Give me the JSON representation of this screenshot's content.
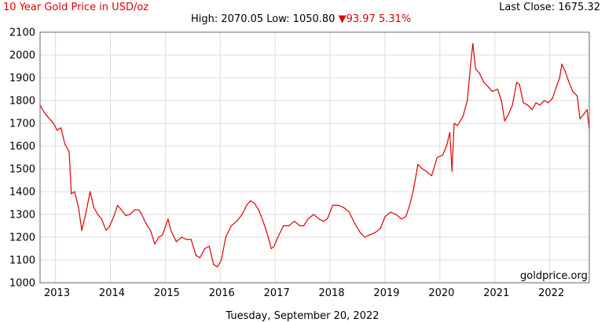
{
  "header": {
    "title": "10 Year Gold Price in USD/oz",
    "last_close_label": "Last Close: 1675.32",
    "high_low": "High: 2070.05 Low: 1050.80",
    "change_arrow": "▼",
    "change": "93.97 5.31%"
  },
  "watermark": "goldprice.org",
  "date_caption": "Tuesday, September 20, 2022",
  "colors": {
    "line": "#e00000",
    "grid": "#dddddd",
    "title": "#e00000",
    "change": "#e00000"
  },
  "chart_data": {
    "type": "line",
    "title": "10 Year Gold Price in USD/oz",
    "xlabel": "",
    "ylabel": "",
    "ylim": [
      1000,
      2100
    ],
    "xlim": [
      2012.72,
      2022.72
    ],
    "yticks": [
      "1000",
      "1100",
      "1200",
      "1300",
      "1400",
      "1500",
      "1600",
      "1700",
      "1800",
      "1900",
      "2000",
      "2100"
    ],
    "xticks": [
      "2013",
      "2014",
      "2015",
      "2016",
      "2017",
      "2018",
      "2019",
      "2020",
      "2021",
      "2022"
    ],
    "grid": true,
    "series": [
      {
        "x": [
          2012.72,
          2012.79,
          2012.87,
          2012.95,
          2013.03,
          2013.1,
          2013.17,
          2013.25,
          2013.29,
          2013.35,
          2013.42,
          2013.48,
          2013.55,
          2013.63,
          2013.7,
          2013.77,
          2013.84,
          2013.92,
          2013.98,
          2014.06,
          2014.13,
          2014.2,
          2014.28,
          2014.36,
          2014.44,
          2014.52,
          2014.57,
          2014.65,
          2014.73,
          2014.81,
          2014.88,
          2014.95,
          2015.05,
          2015.1,
          2015.2,
          2015.3,
          2015.38,
          2015.47,
          2015.56,
          2015.63,
          2015.72,
          2015.8,
          2015.88,
          2015.95,
          2016.02,
          2016.1,
          2016.2,
          2016.3,
          2016.4,
          2016.48,
          2016.55,
          2016.62,
          2016.7,
          2016.78,
          2016.85,
          2016.93,
          2016.98,
          2017.05,
          2017.15,
          2017.25,
          2017.35,
          2017.45,
          2017.52,
          2017.6,
          2017.7,
          2017.8,
          2017.88,
          2017.95,
          2018.05,
          2018.15,
          2018.25,
          2018.35,
          2018.45,
          2018.55,
          2018.63,
          2018.72,
          2018.82,
          2018.92,
          2019.0,
          2019.1,
          2019.2,
          2019.3,
          2019.38,
          2019.45,
          2019.52,
          2019.6,
          2019.68,
          2019.75,
          2019.85,
          2019.95,
          2020.05,
          2020.12,
          2020.18,
          2020.22,
          2020.26,
          2020.32,
          2020.42,
          2020.5,
          2020.56,
          2020.6,
          2020.65,
          2020.72,
          2020.8,
          2020.88,
          2020.95,
          2021.05,
          2021.12,
          2021.18,
          2021.25,
          2021.32,
          2021.4,
          2021.45,
          2021.52,
          2021.6,
          2021.68,
          2021.75,
          2021.82,
          2021.9,
          2021.97,
          2022.05,
          2022.12,
          2022.18,
          2022.22,
          2022.28,
          2022.35,
          2022.42,
          2022.5,
          2022.55,
          2022.62,
          2022.68,
          2022.72
        ],
        "values": [
          1780,
          1750,
          1725,
          1705,
          1670,
          1680,
          1610,
          1575,
          1390,
          1400,
          1330,
          1230,
          1300,
          1400,
          1330,
          1300,
          1280,
          1230,
          1245,
          1290,
          1340,
          1320,
          1295,
          1300,
          1320,
          1320,
          1300,
          1260,
          1230,
          1170,
          1200,
          1210,
          1280,
          1230,
          1180,
          1200,
          1190,
          1190,
          1120,
          1110,
          1150,
          1160,
          1080,
          1070,
          1100,
          1200,
          1250,
          1270,
          1300,
          1340,
          1360,
          1350,
          1320,
          1270,
          1220,
          1150,
          1160,
          1200,
          1250,
          1250,
          1270,
          1250,
          1250,
          1280,
          1300,
          1280,
          1270,
          1280,
          1340,
          1340,
          1330,
          1310,
          1260,
          1220,
          1200,
          1210,
          1220,
          1240,
          1290,
          1310,
          1300,
          1280,
          1290,
          1340,
          1410,
          1520,
          1500,
          1490,
          1470,
          1550,
          1560,
          1600,
          1660,
          1490,
          1700,
          1690,
          1730,
          1800,
          1960,
          2050,
          1940,
          1920,
          1880,
          1860,
          1840,
          1850,
          1800,
          1710,
          1740,
          1780,
          1880,
          1870,
          1790,
          1780,
          1760,
          1790,
          1780,
          1800,
          1790,
          1810,
          1860,
          1900,
          1960,
          1930,
          1880,
          1840,
          1820,
          1720,
          1740,
          1760,
          1675
        ]
      }
    ]
  }
}
